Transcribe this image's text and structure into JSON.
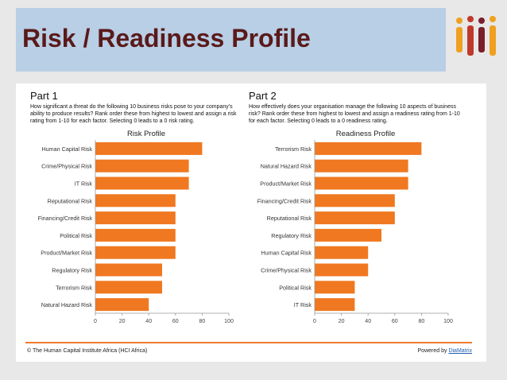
{
  "slide": {
    "title": "Risk / Readiness Profile",
    "footer_left": "© The Human Capital Institute Africa (HCI Africa)",
    "footer_right_prefix": "Powered by ",
    "footer_right_link": "DiaMatrix",
    "colors": {
      "bar": "#f07820",
      "title_bg": "#b8cfe6",
      "title_text": "#5a1a1a",
      "rule": "#ef7a2e"
    }
  },
  "part1": {
    "heading": "Part 1",
    "description": "How significant a threat do the following 10 business risks pose to your company's ability to produce results? Rank order these from highest to lowest and assign a risk rating from 1-10 for each factor. Selecting 0 leads to a 0 risk rating."
  },
  "part2": {
    "heading": "Part 2",
    "description": "How effectively does your organisation manage the following 10 aspects of business risk? Rank order these from highest to lowest and assign a readiness rating from 1-10 for each factor. Selecting 0 leads to a 0 readiness rating."
  },
  "chart_data": [
    {
      "type": "bar",
      "orientation": "horizontal",
      "title": "Risk Profile",
      "categories": [
        "Human Capital Risk",
        "Crime/Physical Risk",
        "IT Risk",
        "Reputational Risk",
        "Financing/Credit Risk",
        "Political Risk",
        "Product/Market Risk",
        "Regulatory Risk",
        "Terrorism Risk",
        "Natural Hazard Risk"
      ],
      "values": [
        80,
        70,
        70,
        60,
        60,
        60,
        60,
        50,
        50,
        40
      ],
      "xlim": [
        0,
        100
      ],
      "xticks": [
        0,
        20,
        40,
        60,
        80,
        100
      ],
      "grid": false,
      "legend": "none"
    },
    {
      "type": "bar",
      "orientation": "horizontal",
      "title": "Readiness Profile",
      "categories": [
        "Terrorism Risk",
        "Natural Hazard Risk",
        "Product/Market Risk",
        "Financing/Credit Risk",
        "Reputational Risk",
        "Regulatory Risk",
        "Human Capital Risk",
        "Crime/Physical Risk",
        "Political Risk",
        "IT Risk"
      ],
      "values": [
        80,
        70,
        70,
        60,
        60,
        50,
        40,
        40,
        30,
        30
      ],
      "xlim": [
        0,
        100
      ],
      "xticks": [
        0,
        20,
        40,
        60,
        80,
        100
      ],
      "grid": false,
      "legend": "none"
    }
  ]
}
